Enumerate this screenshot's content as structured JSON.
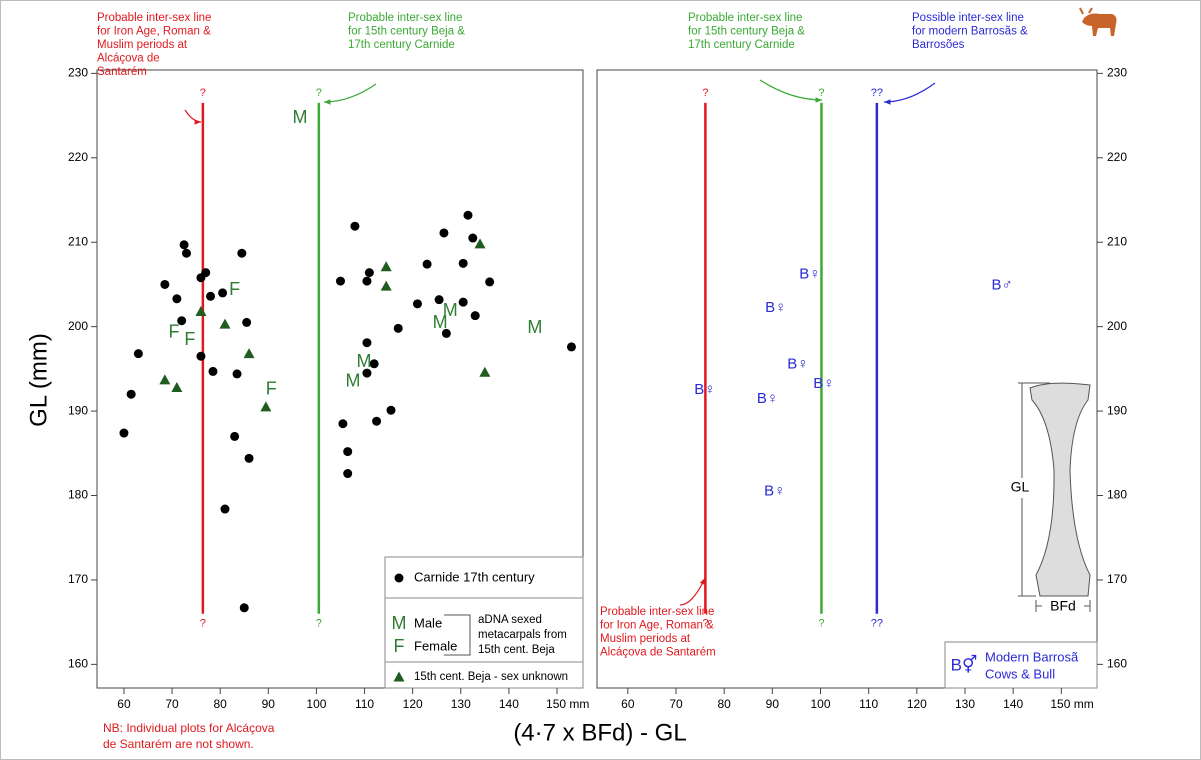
{
  "chart_data": {
    "type": "scatter",
    "y_label": "GL (mm)",
    "x_label": "(4·7 x BFd) - GL",
    "ylim": [
      157.2,
      230.4
    ],
    "yticks": [
      160,
      170,
      180,
      190,
      200,
      210,
      220,
      230
    ],
    "note": [
      "NB: Individual plots for Alcáçova",
      "de Santarém are not shown."
    ],
    "inset_labels": [
      "GL",
      "BFd"
    ],
    "panels": [
      {
        "xlim": [
          54.4,
          155.4
        ],
        "xticks": [
          60,
          70,
          80,
          90,
          100,
          110,
          120,
          130,
          140,
          {
            "value": 150,
            "label": "150 mm"
          }
        ],
        "series": [
          {
            "name": "Carnide 17th century",
            "marker": "circle",
            "color": "#000000",
            "x": [
              60,
              61.5,
              63,
              68.5,
              71,
              72,
              72.5,
              73,
              76,
              76,
              77,
              78,
              78.5,
              80.5,
              81,
              83,
              83.5,
              84.5,
              85,
              85.5,
              86,
              105,
              105.5,
              106.5,
              106.5,
              108,
              110.5,
              110.5,
              110.5,
              111,
              112,
              112.5,
              115.5,
              117,
              121,
              123,
              125.5,
              126.5,
              127,
              130.5,
              130.5,
              131.5,
              132.5,
              133,
              136,
              153
            ],
            "y": [
              187.4,
              192,
              196.8,
              205,
              203.3,
              200.7,
              209.7,
              208.7,
              196.5,
              205.8,
              206.4,
              203.6,
              194.7,
              204,
              178.4,
              187,
              194.4,
              208.7,
              166.7,
              200.5,
              184.4,
              205.4,
              188.5,
              185.2,
              182.6,
              211.9,
              198.1,
              194.5,
              205.4,
              206.4,
              195.6,
              188.8,
              190.1,
              199.8,
              202.7,
              207.4,
              203.2,
              211.1,
              199.2,
              207.5,
              202.9,
              213.2,
              210.5,
              201.3,
              205.3,
              197.6
            ]
          },
          {
            "name": "Male",
            "marker": "M",
            "color": "#2e7d32",
            "x": [
              96.6,
              125.7,
              127.8,
              145.4,
              109.9,
              107.6
            ],
            "y": [
              224.7,
              200.4,
              201.8,
              199.8,
              195.8,
              193.5
            ]
          },
          {
            "name": "Female",
            "marker": "F",
            "color": "#2e7d32",
            "x": [
              83,
              70.4,
              73.7,
              90.6
            ],
            "y": [
              204.3,
              199.3,
              198.4,
              192.5
            ]
          },
          {
            "name": "15th cent. Beja - sex unknown",
            "marker": "triangle",
            "color": "#1f5c1f",
            "x": [
              68.5,
              71,
              76,
              81,
              86,
              89.5,
              114.5,
              114.5,
              134,
              135
            ],
            "y": [
              193.7,
              192.8,
              201.8,
              200.3,
              196.8,
              190.5,
              207.1,
              204.8,
              209.8,
              194.6
            ]
          }
        ],
        "group_label": [
          "aDNA sexed",
          "metacarpals from",
          "15th cent. Beja"
        ],
        "lines": [
          {
            "x": 76.4,
            "y": [
              166,
              226.5
            ],
            "color": "#e0191e",
            "label": "?"
          },
          {
            "x": 100.5,
            "y": [
              166,
              226.5
            ],
            "color": "#3aa935",
            "label": "?"
          }
        ],
        "annotations": [
          {
            "color": "#e0191e",
            "lines": [
              "Probable inter-sex line",
              "for Iron Age, Roman &",
              "Muslim periods at",
              "Alcáçova de",
              "Santarém"
            ]
          },
          {
            "color": "#3aa935",
            "lines": [
              "Probable inter-sex line",
              "for 15th century Beja &",
              "17th century Carnide"
            ]
          }
        ]
      },
      {
        "xlim": [
          53.6,
          157.4
        ],
        "xticks": [
          60,
          70,
          80,
          90,
          100,
          110,
          120,
          130,
          140,
          {
            "value": 150,
            "label": "150 mm"
          }
        ],
        "series": [
          {
            "name_lines": [
              "Modern Barrosã",
              "Cows & Bull"
            ],
            "legend_marker": "B⚥",
            "color": "#2a2ad6",
            "markers": [
              "B♀",
              "B♀",
              "B♀",
              "B♀",
              "B♀",
              "B♀",
              "B♀",
              "B♂"
            ],
            "x": [
              76,
              90.7,
              89,
              95.3,
              97.8,
              100.7,
              90.5,
              137.7
            ],
            "y": [
              192.5,
              202.2,
              191.4,
              195.5,
              206.2,
              193.2,
              180.5,
              204.9
            ]
          }
        ],
        "lines": [
          {
            "x": 76.1,
            "y": [
              166,
              226.5
            ],
            "color": "#e0191e",
            "label": "?"
          },
          {
            "x": 100.2,
            "y": [
              166,
              226.5
            ],
            "color": "#3aa935",
            "label": "?"
          },
          {
            "x": 111.7,
            "y": [
              166,
              226.5
            ],
            "color": "#2a2ad6",
            "label": "??"
          }
        ],
        "annotations": [
          {
            "color": "#3aa935",
            "lines": [
              "Probable inter-sex line",
              "for 15th century Beja &",
              "17th century Carnide"
            ]
          },
          {
            "color": "#2a2ad6",
            "lines": [
              "Possible inter-sex line",
              "for modern Barrosãs &",
              "Barrosões"
            ]
          },
          {
            "color": "#e0191e",
            "lines": [
              "Probable inter-sex line",
              "for Iron Age, Roman &",
              "Muslim periods at",
              "Alcáçova de Santarém"
            ]
          }
        ]
      }
    ]
  }
}
